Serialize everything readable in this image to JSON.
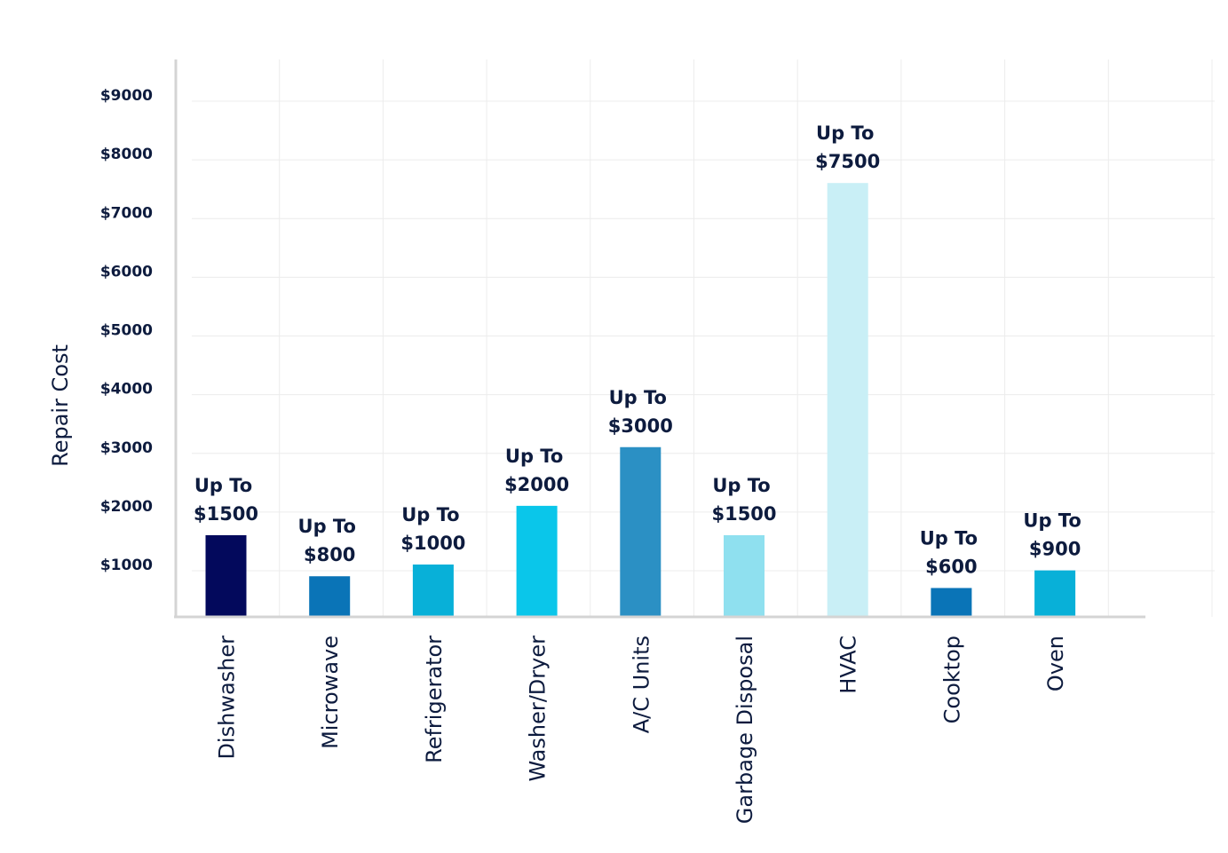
{
  "chart_data": {
    "type": "bar",
    "ylabel": "Repair Cost",
    "ylim": [
      0,
      9000
    ],
    "y_ticks": [
      1000,
      2000,
      3000,
      4000,
      5000,
      6000,
      7000,
      8000,
      9000
    ],
    "y_tick_labels": [
      "$1000",
      "$2000",
      "$3000",
      "$4000",
      "$5000",
      "$6000",
      "$7000",
      "$8000",
      "$9000"
    ],
    "grid": true,
    "categories": [
      "Dishwasher",
      "Microwave",
      "Refrigerator",
      "Washer/Dryer",
      "A/C Units",
      "Garbage Disposal",
      "HVAC",
      "Cooktop",
      "Oven"
    ],
    "values": [
      1500,
      800,
      1000,
      2000,
      3000,
      1500,
      7500,
      600,
      900
    ],
    "data_labels": [
      [
        "Up To",
        "$1500"
      ],
      [
        "Up To",
        "$800"
      ],
      [
        "Up To",
        "$1000"
      ],
      [
        "Up To",
        "$2000"
      ],
      [
        "Up To",
        "$3000"
      ],
      [
        "Up To",
        "$1500"
      ],
      [
        "Up To",
        "$7500"
      ],
      [
        "Up To",
        "$600"
      ],
      [
        "Up To",
        "$900"
      ]
    ],
    "colors": [
      "#03095c",
      "#0a74b7",
      "#08b0d8",
      "#0ac6ea",
      "#2b90c4",
      "#8fe0ef",
      "#c9eff6",
      "#0a74b7",
      "#08b0d8"
    ]
  }
}
